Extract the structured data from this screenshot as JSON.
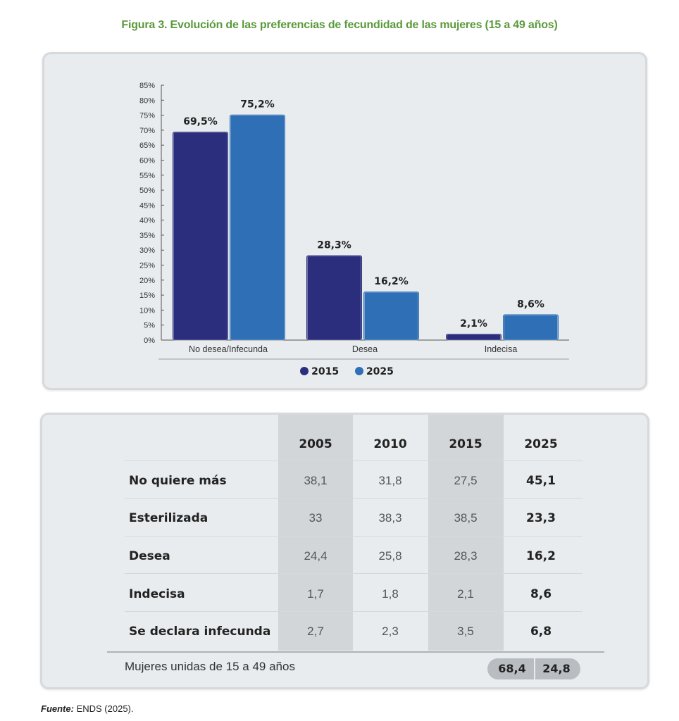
{
  "figure_title": "Figura 3. Evolución de las preferencias de fecundidad de las mujeres (15 a 49 años)",
  "colors": {
    "s2015": "#2b2e7c",
    "s2025": "#2f6fb5",
    "title_green": "#5a9a3c"
  },
  "chart_data": {
    "type": "bar",
    "categories": [
      "No desea/Infecunda",
      "Desea",
      "Indecisa"
    ],
    "series": [
      {
        "name": "2015",
        "values": [
          69.5,
          28.3,
          2.1
        ],
        "labels": [
          "69,5%",
          "28,3%",
          "2,1%"
        ]
      },
      {
        "name": "2025",
        "values": [
          75.2,
          16.2,
          8.6
        ],
        "labels": [
          "75,2%",
          "16,2%",
          "8,6%"
        ]
      }
    ],
    "ylim": [
      0,
      85
    ],
    "yticks": [
      "0%",
      "5%",
      "10%",
      "15%",
      "20%",
      "25%",
      "30%",
      "35%",
      "40%",
      "45%",
      "50%",
      "55%",
      "60%",
      "65%",
      "70%",
      "75%",
      "80%",
      "85%"
    ],
    "legend_position": "bottom-center",
    "grid": false
  },
  "table": {
    "headers": [
      "2005",
      "2010",
      "2015",
      "2025"
    ],
    "rows": [
      {
        "label": "No quiere más",
        "values": [
          "38,1",
          "31,8",
          "27,5",
          "45,1"
        ]
      },
      {
        "label": "Esterilizada",
        "values": [
          "33",
          "38,3",
          "38,5",
          "23,3"
        ]
      },
      {
        "label": "Desea",
        "values": [
          "24,4",
          "25,8",
          "28,3",
          "16,2"
        ]
      },
      {
        "label": "Indecisa",
        "values": [
          "1,7",
          "1,8",
          "2,1",
          "8,6"
        ]
      },
      {
        "label": "Se declara infecunda",
        "values": [
          "2,7",
          "2,3",
          "3,5",
          "6,8"
        ]
      }
    ],
    "footer_label": "Mujeres unidas de 15 a 49 años",
    "footer_values": [
      "68,4",
      "24,8"
    ]
  },
  "source": {
    "label": "Fuente:",
    "text": " ENDS (2025)."
  }
}
